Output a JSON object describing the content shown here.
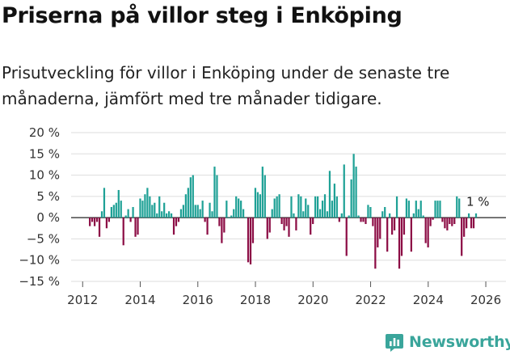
{
  "title": "Priserna på villor steg i Enköping",
  "subtitle": "Prisutveckling för villor i Enköping under de senaste tre månaderna, jämfört med tre månader tidigare.",
  "brand": {
    "name": "Newsworthy",
    "color": "#3aa59b"
  },
  "colors": {
    "positive": "#1fa196",
    "negative": "#8c0d45",
    "grid": "#dddddd",
    "zero": "#222222"
  },
  "chart_data": {
    "type": "bar",
    "title": "Priserna på villor steg i Enköping",
    "xlabel": "",
    "ylabel": "",
    "ylim": [
      -15,
      20
    ],
    "yticks": [
      20,
      15,
      10,
      5,
      0,
      -5,
      -10,
      -15
    ],
    "ytick_labels": [
      "20 %",
      "15 %",
      "10 %",
      "5 %",
      "0 %",
      "−5 %",
      "−10 %",
      "−15 %"
    ],
    "xlim": [
      2011.6,
      2026.7
    ],
    "xticks": [
      2012,
      2014,
      2016,
      2018,
      2020,
      2022,
      2024,
      2026
    ],
    "xtick_labels": [
      "2012",
      "2014",
      "2016",
      "2018",
      "2020",
      "2022",
      "2024",
      "2026"
    ],
    "grid": true,
    "start_year": 2012.25,
    "step": 0.0833,
    "last_label": "1 %",
    "values": [
      -2,
      -1,
      -2,
      -1,
      -4.5,
      1.5,
      7,
      -2.5,
      -1,
      2.5,
      3,
      3.5,
      6.5,
      4,
      -6.5,
      0.5,
      2,
      -1,
      2.5,
      -4.5,
      -4,
      4.5,
      4,
      5.5,
      7,
      5,
      3,
      3.5,
      1,
      5,
      1.5,
      3.5,
      1,
      1.5,
      1,
      -4,
      -2,
      -1,
      2,
      3,
      5.5,
      7,
      9.5,
      10,
      3,
      3,
      2,
      4,
      -1,
      -4,
      3.5,
      1.5,
      12,
      10,
      -2,
      -6,
      -3.5,
      4,
      0,
      0.5,
      2,
      5,
      4.5,
      4,
      2,
      0,
      -10.5,
      -11,
      -6,
      7,
      6,
      5.5,
      12,
      10,
      -5,
      -3.5,
      2,
      4.5,
      5,
      5.5,
      -1.5,
      -3,
      -2,
      -4.5,
      5,
      1,
      -3,
      5.5,
      5,
      1.5,
      4.5,
      3,
      -4,
      -1.5,
      5,
      5,
      2,
      4,
      5.5,
      1.5,
      11,
      4,
      8,
      5,
      -1,
      1,
      12.5,
      -9,
      0.5,
      9,
      15,
      12,
      0.5,
      -1,
      -1,
      -1.5,
      3,
      2.5,
      -2,
      -12,
      -7,
      -5,
      1.5,
      2.5,
      -8,
      1,
      -4,
      -3,
      5,
      -12,
      -9,
      -4,
      4.5,
      4,
      -8,
      1,
      4,
      2,
      4,
      0.5,
      -6,
      -7,
      -2,
      -0.5,
      4,
      4,
      4,
      -1,
      -2.5,
      -3,
      -1.5,
      -2,
      -1.5,
      5,
      4.5,
      -9,
      -4.5,
      -2.5,
      1,
      -2.5,
      -2.5,
      1
    ]
  }
}
